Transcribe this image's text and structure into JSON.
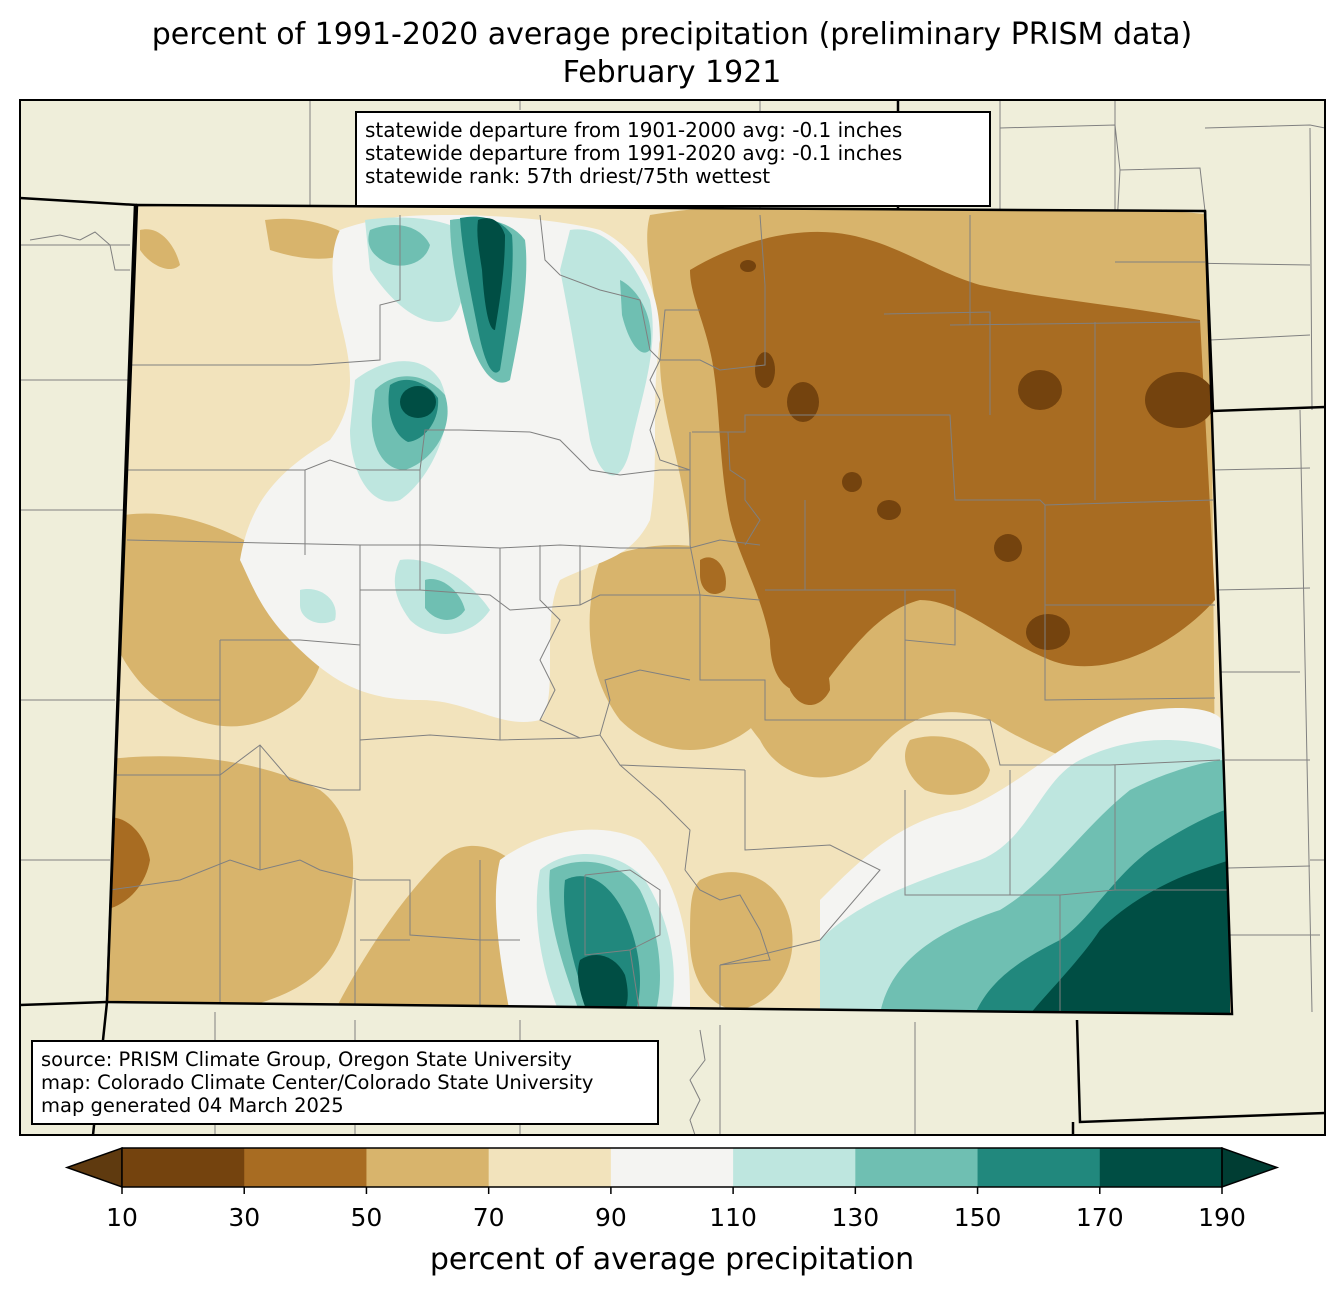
{
  "title": {
    "line1": "percent of 1991-2020 average precipitation (preliminary PRISM data)",
    "line2": "February 1921"
  },
  "stats": {
    "line1": "statewide departure from 1901-2000 avg: -0.1 inches",
    "line2": "statewide departure from 1991-2020 avg: -0.1 inches",
    "line3": "statewide rank: 57th driest/75th wettest"
  },
  "source": {
    "line1": "source: PRISM Climate Group, Oregon State University",
    "line2": "map: Colorado Climate Center/Colorado State University",
    "line3": "map generated 04 March 2025"
  },
  "colorbar": {
    "label": "percent of average precipitation",
    "ticks": [
      "10",
      "30",
      "50",
      "70",
      "90",
      "110",
      "130",
      "150",
      "170",
      "190"
    ],
    "under_color": "#5f3a0f",
    "over_color": "#003d33",
    "colors": [
      "#74430e",
      "#a86c22",
      "#d8b46c",
      "#f2e3bc",
      "#f4f4f2",
      "#bee6df",
      "#6fbfb2",
      "#21887d",
      "#004e44"
    ]
  },
  "colors": {
    "land": "#efeeda",
    "boundary": "#000000",
    "county_line": "#808080"
  }
}
